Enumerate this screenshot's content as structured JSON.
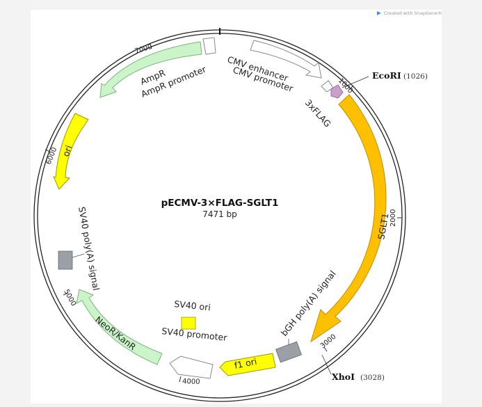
{
  "watermark": {
    "text": "Created with SnapGene®",
    "brand_color": "#f07c4c"
  },
  "plasmid": {
    "name": "pECMV-3×FLAG-SGLT1",
    "length": "7471 bp"
  },
  "ticks": [
    "1000",
    "2000",
    "3000",
    "4000",
    "5000",
    "6000",
    "7000"
  ],
  "sites": [
    {
      "name": "EcoRI",
      "position": "(1026)"
    },
    {
      "name": "XhoI",
      "position": "(3028)"
    }
  ],
  "features": {
    "cmv_enhancer": "CMV enhancer",
    "cmv_promoter": "CMV promoter",
    "flag": "3xFLAG",
    "sglt1": "SGLT1",
    "bgh": "bGH poly(A) signal",
    "f1_ori": "f1 ori",
    "sv40_promoter": "SV40 promoter",
    "sv40_ori": "SV40 ori",
    "neor": "NeoR/KanR",
    "sv40_polya": "SV40 poly(A) signal",
    "ori": "ori",
    "ampr": "AmpR",
    "ampr_promoter": "AmpR promoter"
  },
  "colors": {
    "sglt1": "#ffc000",
    "f1_ori": "#ffff00",
    "ori": "#ffff00",
    "sv40_ori": "#ffff00",
    "neor": "#cbf5c8",
    "ampr": "#cbf5c8",
    "flag": "#c9a0c9",
    "polya": "#9aa0a6",
    "promoter": "#ffffff"
  }
}
